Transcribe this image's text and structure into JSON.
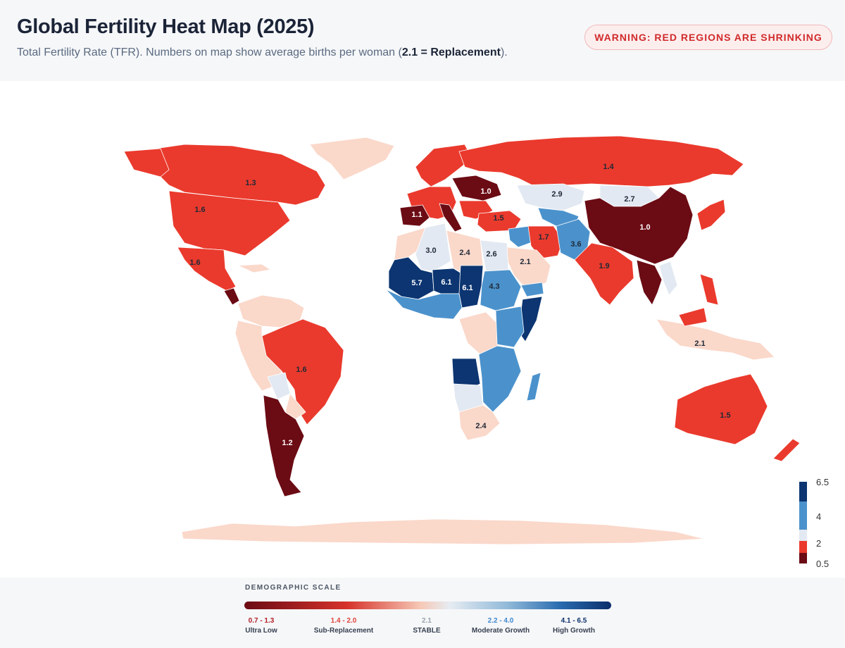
{
  "header": {
    "title": "Global Fertility Heat Map (2025)",
    "subtitle_prefix": "Total Fertility Rate (TFR). Numbers on map show average births per woman (",
    "subtitle_bold": "2.1 = Replacement",
    "subtitle_suffix": ").",
    "warning": "WARNING: RED REGIONS ARE SHRINKING"
  },
  "colors": {
    "ultra_low": "#6b0b14",
    "sub_replacement": "#ea3a2d",
    "near_replacement": "#fad8ca",
    "stable": "#e3e9f2",
    "moderate_growth": "#4b92cc",
    "high_growth": "#0c3571",
    "ocean": "#ffffff"
  },
  "map_labels": [
    {
      "region": "Canada",
      "value": "1.3"
    },
    {
      "region": "United States",
      "value": "1.6"
    },
    {
      "region": "Mexico",
      "value": "1.6"
    },
    {
      "region": "Brazil",
      "value": "1.6"
    },
    {
      "region": "Argentina / Chile",
      "value": "1.2"
    },
    {
      "region": "Spain",
      "value": "1.1"
    },
    {
      "region": "Central Europe",
      "value": "1.0"
    },
    {
      "region": "Russia",
      "value": "1.4"
    },
    {
      "region": "Turkey",
      "value": "1.5"
    },
    {
      "region": "Algeria",
      "value": "3.0"
    },
    {
      "region": "Libya",
      "value": "2.4"
    },
    {
      "region": "Egypt",
      "value": "2.6"
    },
    {
      "region": "Saudi Arabia",
      "value": "2.1"
    },
    {
      "region": "Iran",
      "value": "1.7"
    },
    {
      "region": "Afghanistan / Pakistan",
      "value": "3.6"
    },
    {
      "region": "Kazakhstan",
      "value": "2.9"
    },
    {
      "region": "Mongolia",
      "value": "2.7"
    },
    {
      "region": "China",
      "value": "1.0"
    },
    {
      "region": "India",
      "value": "1.9"
    },
    {
      "region": "Mali",
      "value": "5.7"
    },
    {
      "region": "Niger",
      "value": "6.1"
    },
    {
      "region": "Chad",
      "value": "6.1"
    },
    {
      "region": "Sudan",
      "value": "4.3"
    },
    {
      "region": "South Africa",
      "value": "2.4"
    },
    {
      "region": "Indonesia",
      "value": "2.1"
    },
    {
      "region": "Australia",
      "value": "1.5"
    }
  ],
  "colorbar": {
    "ticks": [
      "6.5",
      "4",
      "2",
      "0.5"
    ]
  },
  "legend": {
    "heading": "DEMOGRAPHIC SCALE",
    "items": [
      {
        "range": "0.7 - 1.3",
        "name": "Ultra Low",
        "color": "#b3202a"
      },
      {
        "range": "1.4 - 2.0",
        "name": "Sub-Replacement",
        "color": "#e2423a"
      },
      {
        "range": "2.1",
        "name": "STABLE",
        "color": "#9aa3ad"
      },
      {
        "range": "2.2 - 4.0",
        "name": "Moderate Growth",
        "color": "#3f8ad0"
      },
      {
        "range": "4.1 - 6.5",
        "name": "High Growth",
        "color": "#0c2f6b"
      }
    ]
  }
}
